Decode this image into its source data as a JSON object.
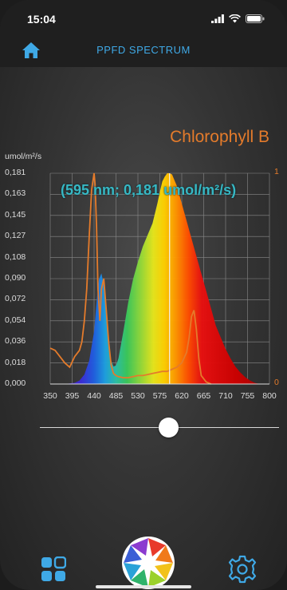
{
  "status_bar": {
    "time": "15:04"
  },
  "nav": {
    "title": "PPFD SPECTRUM",
    "home_icon": "home-icon"
  },
  "panel": {
    "pigment_name": "Chlorophyll B",
    "readout": "(595 nm; 0,181 umol/m²/s)",
    "y_unit": "umol/m²/s",
    "y_ticks": [
      "0,181",
      "0,163",
      "0,145",
      "0,127",
      "0,108",
      "0,090",
      "0,072",
      "0,054",
      "0,036",
      "0,018",
      "0,000"
    ],
    "right_ticks": [
      "1",
      "0"
    ],
    "x_ticks": [
      "350",
      "395",
      "440",
      "485",
      "530",
      "575",
      "620",
      "665",
      "710",
      "755",
      "800"
    ]
  },
  "colors": {
    "accent": "#3fa9e6",
    "pigment": "#e47b2b",
    "readout": "#37b8c4"
  },
  "chart_data": {
    "type": "area",
    "xlabel": "",
    "ylabel": "umol/m²/s",
    "xlim": [
      350,
      800
    ],
    "ylim": [
      0,
      0.181
    ],
    "y2lim": [
      0,
      1
    ],
    "selected": {
      "x": 595,
      "y": 0.181
    },
    "series": [
      {
        "name": "PPFD",
        "x": [
          350,
          380,
          400,
          410,
          420,
          430,
          440,
          445,
          450,
          455,
          460,
          465,
          470,
          475,
          480,
          485,
          490,
          500,
          510,
          520,
          530,
          540,
          550,
          560,
          570,
          575,
          580,
          585,
          590,
          595,
          600,
          610,
          620,
          630,
          640,
          650,
          660,
          670,
          680,
          690,
          700,
          710,
          720,
          730,
          740,
          750,
          760,
          770,
          780
        ],
        "y": [
          0,
          0,
          0.001,
          0.003,
          0.008,
          0.02,
          0.045,
          0.07,
          0.09,
          0.095,
          0.085,
          0.06,
          0.035,
          0.02,
          0.015,
          0.016,
          0.022,
          0.045,
          0.07,
          0.09,
          0.105,
          0.118,
          0.128,
          0.138,
          0.155,
          0.165,
          0.174,
          0.178,
          0.181,
          0.181,
          0.18,
          0.17,
          0.155,
          0.14,
          0.125,
          0.11,
          0.095,
          0.08,
          0.065,
          0.05,
          0.04,
          0.03,
          0.022,
          0.015,
          0.01,
          0.006,
          0.003,
          0.001,
          0
        ]
      },
      {
        "name": "Chlorophyll B",
        "x": [
          350,
          360,
          370,
          380,
          390,
          400,
          410,
          415,
          420,
          425,
          430,
          435,
          440,
          442,
          445,
          448,
          452,
          455,
          460,
          465,
          470,
          475,
          480,
          485,
          490,
          500,
          510,
          520,
          530,
          540,
          550,
          560,
          570,
          580,
          590,
          600,
          610,
          620,
          630,
          635,
          640,
          645,
          650,
          655,
          660,
          670,
          680
        ],
        "y": [
          0.17,
          0.16,
          0.13,
          0.1,
          0.08,
          0.13,
          0.16,
          0.2,
          0.3,
          0.45,
          0.7,
          0.92,
          1.0,
          0.95,
          0.75,
          0.45,
          0.3,
          0.45,
          0.5,
          0.35,
          0.2,
          0.09,
          0.05,
          0.04,
          0.035,
          0.03,
          0.03,
          0.035,
          0.04,
          0.04,
          0.045,
          0.05,
          0.055,
          0.06,
          0.06,
          0.07,
          0.08,
          0.1,
          0.15,
          0.22,
          0.32,
          0.35,
          0.26,
          0.12,
          0.04,
          0.01,
          0
        ]
      }
    ]
  }
}
